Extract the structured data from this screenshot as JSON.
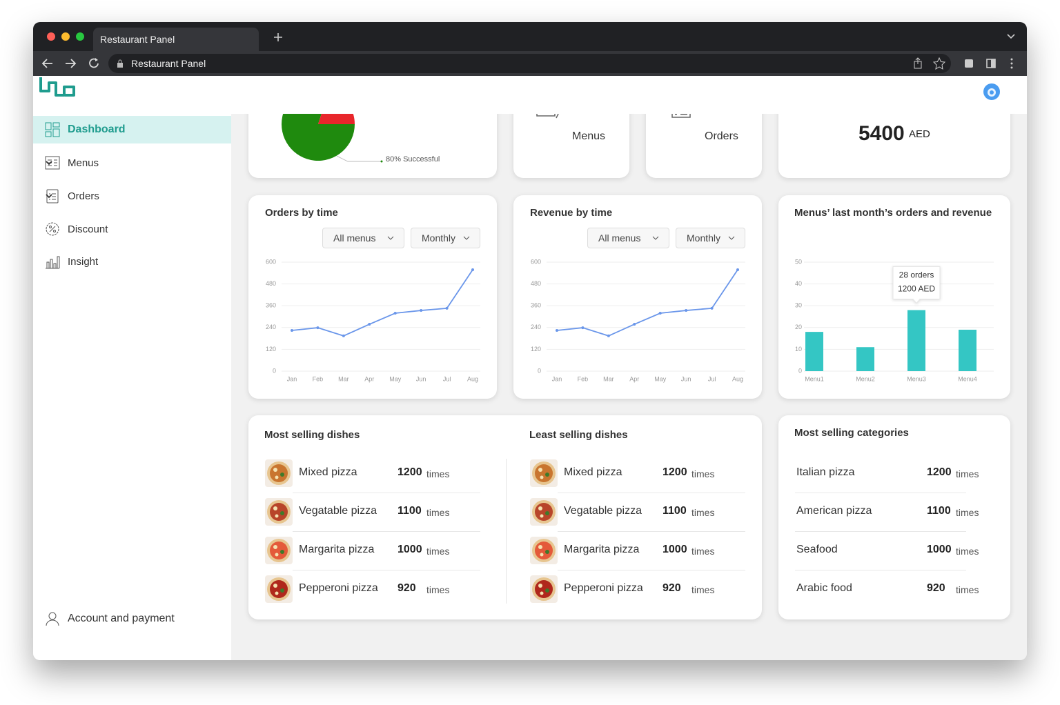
{
  "browser": {
    "tab_title": "Restaurant Panel",
    "address": "Restaurant Panel"
  },
  "sidebar": {
    "items": [
      "Dashboard",
      "Menus",
      "Orders",
      "Discount",
      "Insight"
    ],
    "account": "Account and payment"
  },
  "summary": {
    "menus_label": "Menus",
    "orders_label": "Orders",
    "revenue_amount": 5400,
    "revenue_currency": "AED"
  },
  "chart_data": [
    {
      "type": "pie",
      "values": [
        80,
        20
      ],
      "colors": [
        "#1f8a0e",
        "#e8262b"
      ],
      "value_labels": [
        "80% Successful",
        null
      ]
    },
    {
      "type": "line",
      "title": "Orders by time",
      "filters": [
        "All menus",
        "Monthly"
      ],
      "categories": [
        "Jan",
        "Feb",
        "Mar",
        "Apr",
        "May",
        "Jun",
        "Jul",
        "Aug"
      ],
      "series": [
        {
          "color": "#6a96ea",
          "values": [
            224,
            239,
            194,
            258,
            319,
            334,
            346,
            558
          ]
        }
      ],
      "ylim": [
        0,
        600
      ],
      "yticks": [
        0,
        120,
        240,
        360,
        480,
        600
      ],
      "grid": true
    },
    {
      "type": "line",
      "title": "Revenue by time",
      "filters": [
        "All menus",
        "Monthly"
      ],
      "categories": [
        "Jan",
        "Feb",
        "Mar",
        "Apr",
        "May",
        "Jun",
        "Jul",
        "Aug"
      ],
      "series": [
        {
          "color": "#6a96ea",
          "values": [
            224,
            239,
            194,
            258,
            319,
            334,
            346,
            558
          ]
        }
      ],
      "ylim": [
        0,
        600
      ],
      "yticks": [
        0,
        120,
        240,
        360,
        480,
        600
      ],
      "grid": true
    },
    {
      "type": "bar",
      "title": "Menus’ last month’s orders and revenue",
      "categories": [
        "Menu1",
        "Menu2",
        "Menu3",
        "Menu4"
      ],
      "values": [
        18,
        11,
        28,
        19
      ],
      "color": "#34c6c4",
      "value_labels": [
        null,
        null,
        "28 orders",
        null
      ],
      "revenue_labels": [
        null,
        null,
        "1200 AED",
        null
      ],
      "ylim": [
        0,
        50
      ],
      "yticks": [
        0,
        10,
        20,
        30,
        40,
        50
      ],
      "grid": true
    }
  ],
  "most_selling_dishes": {
    "title": "Most selling dishes",
    "rows": [
      {
        "name": "Mixed pizza",
        "count": 1200,
        "unit": "times"
      },
      {
        "name": "Vegatable pizza",
        "count": 1100,
        "unit": "times"
      },
      {
        "name": "Margarita pizza",
        "count": 1000,
        "unit": "times"
      },
      {
        "name": "Pepperoni pizza",
        "count": 920,
        "unit": "times"
      }
    ]
  },
  "least_selling_dishes": {
    "title": "Least selling dishes",
    "rows": [
      {
        "name": "Mixed pizza",
        "count": 1200,
        "unit": "times"
      },
      {
        "name": "Vegatable pizza",
        "count": 1100,
        "unit": "times"
      },
      {
        "name": "Margarita pizza",
        "count": 1000,
        "unit": "times"
      },
      {
        "name": "Pepperoni pizza",
        "count": 920,
        "unit": "times"
      }
    ]
  },
  "most_selling_categories": {
    "title": "Most selling categories",
    "rows": [
      {
        "name": "Italian pizza",
        "count": 1200,
        "unit": "times"
      },
      {
        "name": "American pizza",
        "count": 1100,
        "unit": "times"
      },
      {
        "name": "Seafood",
        "count": 1000,
        "unit": "times"
      },
      {
        "name": "Arabic food",
        "count": 920,
        "unit": "times"
      }
    ]
  }
}
